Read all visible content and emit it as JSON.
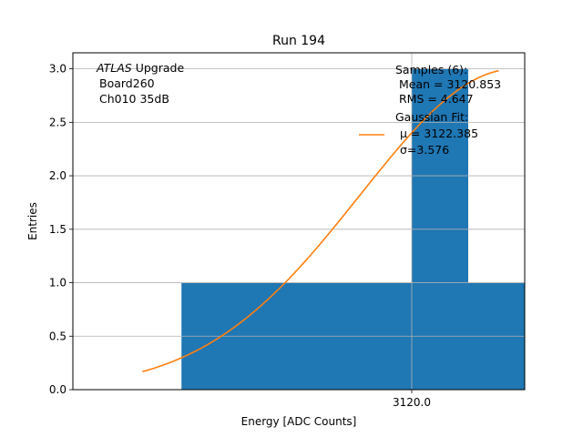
{
  "chart_data": {
    "type": "bar",
    "title": "Run 194",
    "xlabel": "Energy [ADC Counts]",
    "ylabel": "Entries",
    "xlim": [
      3112.2,
      3122.6
    ],
    "ylim": [
      0,
      3.15
    ],
    "x_ticks": [
      3120.0
    ],
    "x_tick_labels": [
      "3120.0"
    ],
    "y_ticks": [
      0.0,
      0.5,
      1.0,
      1.5,
      2.0,
      2.5,
      3.0
    ],
    "y_tick_labels": [
      "0.0",
      "0.5",
      "1.0",
      "1.5",
      "2.0",
      "2.5",
      "3.0"
    ],
    "grid": true,
    "bar_color": "#1f77b4",
    "fit_color": "#ff7f0e",
    "bars": [
      {
        "x0": 3114.7,
        "x1": 3120.0,
        "value": 1
      },
      {
        "x0": 3120.0,
        "x1": 3121.3,
        "value": 3
      },
      {
        "x0": 3121.3,
        "x1": 3122.6,
        "value": 1
      }
    ],
    "fit": {
      "mu": 3122.385,
      "sigma": 3.576,
      "amplitude": 3.0,
      "x_range": [
        3113.8,
        3122.0
      ]
    },
    "annotations": {
      "atlas_lines": [
        "ATLAS",
        " Upgrade",
        "Board260",
        "Ch010 35dB"
      ],
      "stats_lines": [
        "Samples (6):",
        " Mean = 3120.853",
        " RMS = 4.647",
        "Gaussian Fit:"
      ],
      "legend_lines": [
        "μ = 3122.385",
        "σ=3.576"
      ]
    }
  }
}
